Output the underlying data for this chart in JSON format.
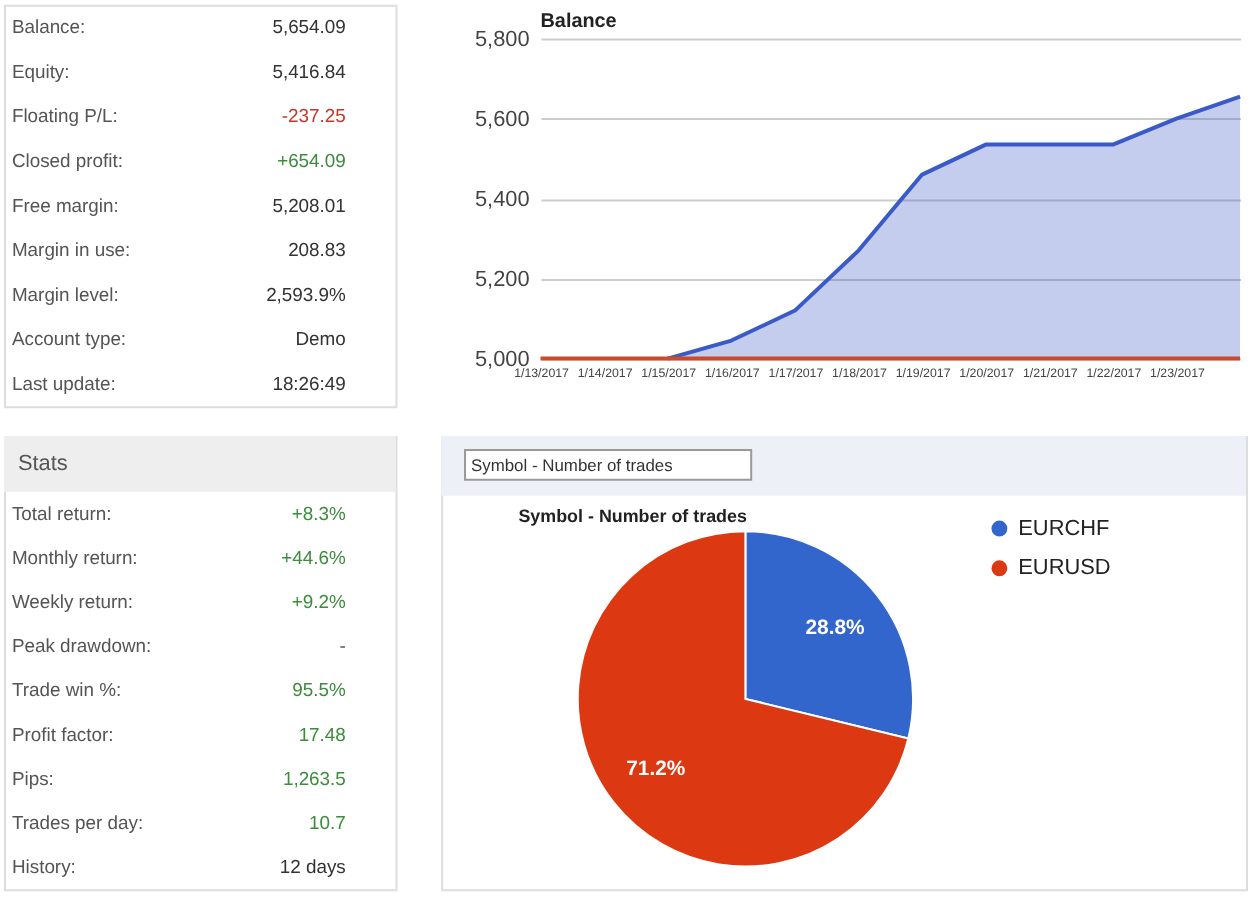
{
  "chart_data": [
    {
      "type": "other",
      "annotations": [
        "Balance:",
        "5,654.09",
        "Equity:",
        "5,416.84",
        "Floating P/L:",
        "-237.25",
        "Closed profit:",
        "+654.09",
        "Free margin:",
        "5,208.01",
        "Margin in use:",
        "208.83",
        "Margin level:",
        "2,593.9%",
        "Account type:",
        "Demo",
        "Last update:",
        "18:26:49"
      ],
      "colors": [
        "#555555",
        "#333333",
        "#555555",
        "#333333",
        "#555555",
        "#c0392b",
        "#555555",
        "#3c8c3c",
        "#555555",
        "#333333",
        "#555555",
        "#333333",
        "#555555",
        "#333333",
        "#555555",
        "#333333",
        "#555555",
        "#333333"
      ]
    },
    {
      "type": "area",
      "title": "Balance",
      "x": [
        "2017-01-13",
        "2017-01-14",
        "2017-01-15",
        "2017-01-16",
        "2017-01-17",
        "2017-01-18",
        "2017-01-19",
        "2017-01-20",
        "2017-01-21",
        "2017-01-22",
        "2017-01-23",
        "2017-01-24"
      ],
      "series": [
        {
          "type": "area",
          "color": "#3a5bc7",
          "values": [
            null,
            null,
            5000,
            5045,
            5120,
            5270,
            5460,
            5535,
            5535,
            5535,
            5600,
            5655
          ]
        },
        {
          "type": "line",
          "color": "#cc4a2a",
          "values": [
            5000,
            5000,
            5000,
            5000,
            5000,
            5000,
            5000,
            5000,
            5000,
            5000,
            5000,
            5000
          ]
        }
      ],
      "xlim": [
        "2017-01-13",
        "2017-01-24"
      ],
      "xticks": [
        {
          "value": "2017-01-13",
          "label": "1/13/2017"
        },
        {
          "value": "2017-01-14",
          "label": "1/14/2017"
        },
        {
          "value": "2017-01-15",
          "label": "1/15/2017"
        },
        {
          "value": "2017-01-16",
          "label": "1/16/2017"
        },
        {
          "value": "2017-01-17",
          "label": "1/17/2017"
        },
        {
          "value": "2017-01-18",
          "label": "1/18/2017"
        },
        {
          "value": "2017-01-19",
          "label": "1/19/2017"
        },
        {
          "value": "2017-01-20",
          "label": "1/20/2017"
        },
        {
          "value": "2017-01-21",
          "label": "1/21/2017"
        },
        {
          "value": "2017-01-22",
          "label": "1/22/2017"
        },
        {
          "value": "2017-01-23",
          "label": "1/23/2017"
        }
      ],
      "ylim": [
        5000,
        5800
      ],
      "yticks": [
        {
          "value": 5000,
          "label": "5,000"
        },
        {
          "value": 5200,
          "label": "5,200"
        },
        {
          "value": 5400,
          "label": "5,400"
        },
        {
          "value": 5600,
          "label": "5,600"
        },
        {
          "value": 5800,
          "label": "5,800"
        }
      ],
      "grid": "y"
    },
    {
      "type": "other",
      "title": "Stats",
      "annotations": [
        "Total return:",
        "+8.3%",
        "Monthly return:",
        "+44.6%",
        "Weekly return:",
        "+9.2%",
        "Peak drawdown:",
        "-",
        "Trade win %:",
        "95.5%",
        "Profit factor:",
        "17.48",
        "Pips:",
        "1,263.5",
        "Trades per day:",
        "10.7",
        "History:",
        "12 days"
      ],
      "colors": [
        "#555555",
        "#3c8c3c",
        "#555555",
        "#3c8c3c",
        "#555555",
        "#3c8c3c",
        "#555555",
        "#555555",
        "#555555",
        "#3c8c3c",
        "#555555",
        "#3c8c3c",
        "#555555",
        "#3c8c3c",
        "#555555",
        "#3c8c3c",
        "#555555",
        "#333333"
      ]
    },
    {
      "type": "pie",
      "title": "Symbol - Number of trades",
      "annotations": [
        "Symbol - Number of trades"
      ],
      "categories": [
        "EURCHF",
        "EURUSD"
      ],
      "values": [
        28.8,
        71.2
      ],
      "colors": [
        "#3366cc",
        "#dc3912"
      ],
      "value_labels": [
        "28.8%",
        "71.2%"
      ],
      "legend": "top right"
    }
  ]
}
